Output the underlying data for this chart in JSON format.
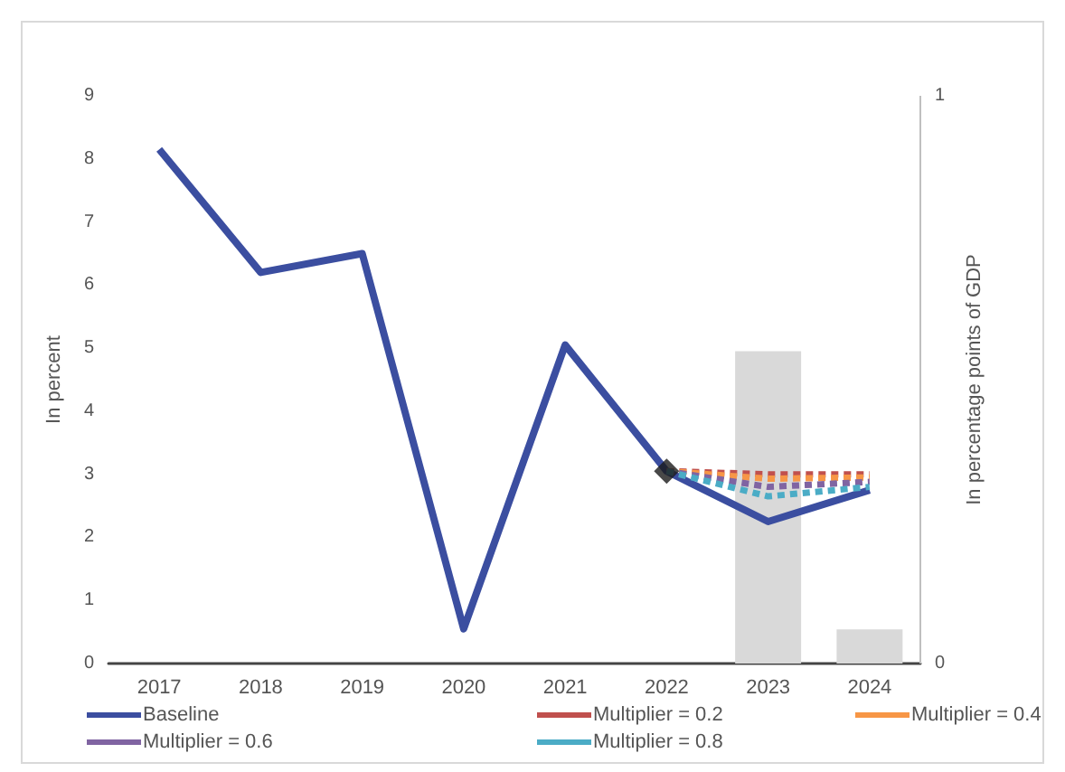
{
  "chart_data": {
    "type": "line",
    "categories": [
      "2017",
      "2018",
      "2019",
      "2020",
      "2021",
      "2022",
      "2023",
      "2024"
    ],
    "ylabel": "In percent",
    "y2label": "In percentage points of GDP",
    "ylim": [
      0,
      9
    ],
    "yticks": [
      0,
      1,
      2,
      3,
      4,
      5,
      6,
      7,
      8,
      9
    ],
    "y2lim": [
      0,
      1
    ],
    "y2ticks": [
      0,
      1
    ],
    "grid": false,
    "legend": "bottom",
    "series": [
      {
        "type": "bar",
        "axis": "y2",
        "color": "#d9d9d9",
        "values": [
          null,
          null,
          null,
          null,
          null,
          null,
          0.55,
          0.06
        ]
      },
      {
        "name": "Baseline",
        "color": "#3b4ea0",
        "line_style": "solid",
        "values": [
          8.15,
          6.2,
          6.5,
          0.55,
          5.05,
          3.05,
          2.25,
          2.75
        ]
      },
      {
        "name": "Multiplier = 0.2",
        "color": "#c0504d",
        "line_style": "dashed",
        "values": [
          null,
          null,
          null,
          null,
          null,
          3.05,
          3.0,
          3.0
        ]
      },
      {
        "name": "Multiplier = 0.4",
        "color": "#f79646",
        "line_style": "dashed",
        "values": [
          null,
          null,
          null,
          null,
          null,
          3.05,
          2.93,
          2.95
        ]
      },
      {
        "name": "Multiplier = 0.6",
        "color": "#8064a2",
        "line_style": "dashed",
        "values": [
          null,
          null,
          null,
          null,
          null,
          3.05,
          2.8,
          2.88
        ]
      },
      {
        "name": "Multiplier = 0.8",
        "color": "#4bacc6",
        "line_style": "dashed",
        "values": [
          null,
          null,
          null,
          null,
          null,
          3.05,
          2.65,
          2.8
        ]
      },
      {
        "type": "scatter",
        "marker": "diamond",
        "color": "#1a1a1a",
        "values": [
          null,
          null,
          null,
          null,
          null,
          3.05,
          null,
          null
        ]
      }
    ]
  }
}
